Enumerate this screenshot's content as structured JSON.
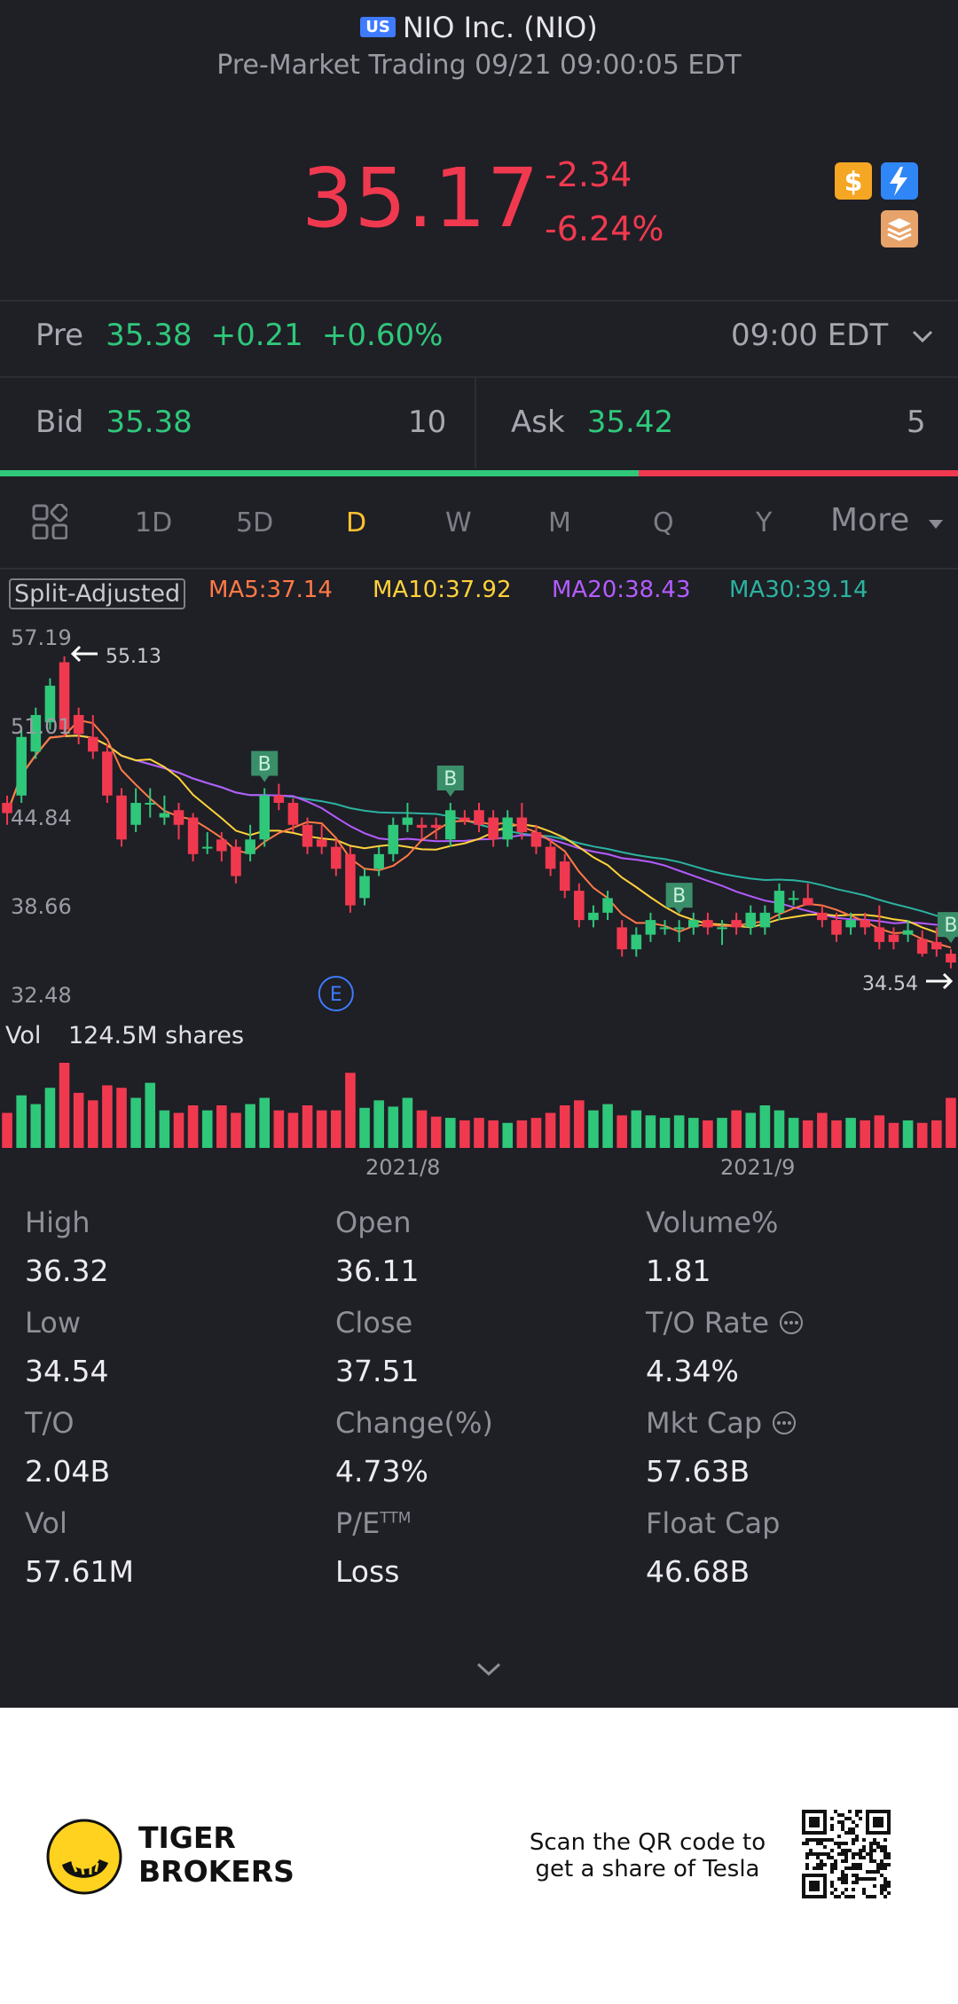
{
  "header": {
    "badge": "US",
    "title": "NIO Inc. (NIO)",
    "subtitle": "Pre-Market Trading 09/21 09:00:05 EDT"
  },
  "quote": {
    "price": "35.17",
    "change": "-2.34",
    "change_pct": "-6.24%",
    "icons": [
      "dollar-icon",
      "lightning-icon",
      "stack-icon"
    ]
  },
  "pre": {
    "label": "Pre",
    "price": "35.38",
    "change": "+0.21",
    "change_pct": "+0.60%",
    "time": "09:00 EDT"
  },
  "bidask": {
    "bid_label": "Bid",
    "bid": "35.38",
    "bid_size": "10",
    "ask_label": "Ask",
    "ask": "35.42",
    "ask_size": "5",
    "bid_ratio": 0.667
  },
  "tabs": [
    "1D",
    "5D",
    "D",
    "W",
    "M",
    "Q",
    "Y"
  ],
  "active_tab": "D",
  "more_label": "More",
  "chart": {
    "split_label": "Split-Adjusted",
    "ma5": "MA5:37.14",
    "ma10": "MA10:37.92",
    "ma20": "MA20:38.43",
    "ma30": "MA30:39.14",
    "y_labels": [
      "57.19",
      "51.01",
      "44.84",
      "38.66",
      "32.48"
    ],
    "high_marker": "55.13",
    "low_marker": "34.54",
    "event_badge": "E",
    "trade_badge": "B",
    "vol_label": "Vol",
    "vol_value": "124.5M shares",
    "x_labels": [
      "2021/8",
      "2021/9"
    ],
    "colors": {
      "up": "#2fc77a",
      "down": "#f0394f",
      "ma5": "#ff7a45",
      "ma10": "#ffd23a",
      "ma20": "#b45cff",
      "ma30": "#2bb3a0"
    }
  },
  "chart_data": {
    "type": "candlestick",
    "ylim": [
      32.48,
      57.19
    ],
    "candles": [
      {
        "o": 45.5,
        "c": 44.8,
        "h": 46.0,
        "l": 44.0,
        "v": 28
      },
      {
        "o": 46.0,
        "c": 50.0,
        "h": 50.5,
        "l": 45.5,
        "v": 42
      },
      {
        "o": 49.0,
        "c": 51.5,
        "h": 52.0,
        "l": 48.5,
        "v": 35
      },
      {
        "o": 51.0,
        "c": 53.5,
        "h": 54.0,
        "l": 50.5,
        "v": 48
      },
      {
        "o": 55.1,
        "c": 50.5,
        "h": 55.5,
        "l": 50.0,
        "v": 68
      },
      {
        "o": 51.5,
        "c": 50.2,
        "h": 52.0,
        "l": 49.5,
        "v": 44
      },
      {
        "o": 50.0,
        "c": 49.0,
        "h": 51.5,
        "l": 48.5,
        "v": 38
      },
      {
        "o": 49.0,
        "c": 46.0,
        "h": 49.5,
        "l": 45.5,
        "v": 50
      },
      {
        "o": 46.0,
        "c": 43.0,
        "h": 46.5,
        "l": 42.5,
        "v": 48
      },
      {
        "o": 44.0,
        "c": 45.5,
        "h": 46.5,
        "l": 43.5,
        "v": 40
      },
      {
        "o": 45.5,
        "c": 45.5,
        "h": 46.5,
        "l": 44.5,
        "v": 52
      },
      {
        "o": 44.5,
        "c": 44.8,
        "h": 46.0,
        "l": 44.0,
        "v": 30
      },
      {
        "o": 45.0,
        "c": 44.0,
        "h": 45.5,
        "l": 43.0,
        "v": 28
      },
      {
        "o": 44.5,
        "c": 42.0,
        "h": 44.8,
        "l": 41.5,
        "v": 34
      },
      {
        "o": 42.5,
        "c": 42.5,
        "h": 43.5,
        "l": 42.0,
        "v": 30
      },
      {
        "o": 43.0,
        "c": 42.2,
        "h": 43.5,
        "l": 41.5,
        "v": 34
      },
      {
        "o": 42.5,
        "c": 40.5,
        "h": 43.0,
        "l": 40.0,
        "v": 28
      },
      {
        "o": 42.0,
        "c": 43.0,
        "h": 44.0,
        "l": 41.5,
        "v": 35
      },
      {
        "o": 43.0,
        "c": 46.0,
        "h": 46.5,
        "l": 42.5,
        "v": 40
      },
      {
        "o": 46.0,
        "c": 45.5,
        "h": 46.8,
        "l": 45.0,
        "v": 30
      },
      {
        "o": 45.5,
        "c": 44.0,
        "h": 45.8,
        "l": 43.5,
        "v": 28
      },
      {
        "o": 44.0,
        "c": 42.5,
        "h": 44.5,
        "l": 42.0,
        "v": 34
      },
      {
        "o": 43.0,
        "c": 42.5,
        "h": 44.0,
        "l": 42.0,
        "v": 30
      },
      {
        "o": 42.5,
        "c": 41.0,
        "h": 43.0,
        "l": 40.5,
        "v": 30
      },
      {
        "o": 42.0,
        "c": 38.5,
        "h": 42.5,
        "l": 38.0,
        "v": 60
      },
      {
        "o": 39.0,
        "c": 40.5,
        "h": 41.0,
        "l": 38.5,
        "v": 32
      },
      {
        "o": 41.0,
        "c": 42.0,
        "h": 42.5,
        "l": 40.5,
        "v": 38
      },
      {
        "o": 42.0,
        "c": 44.0,
        "h": 44.5,
        "l": 41.5,
        "v": 33
      },
      {
        "o": 44.0,
        "c": 44.5,
        "h": 45.5,
        "l": 43.5,
        "v": 40
      },
      {
        "o": 44.0,
        "c": 43.8,
        "h": 44.5,
        "l": 43.0,
        "v": 30
      },
      {
        "o": 44.0,
        "c": 43.8,
        "h": 44.5,
        "l": 43.0,
        "v": 25
      },
      {
        "o": 43.0,
        "c": 45.0,
        "h": 45.5,
        "l": 42.5,
        "v": 24
      },
      {
        "o": 44.5,
        "c": 44.3,
        "h": 45.0,
        "l": 44.0,
        "v": 22
      },
      {
        "o": 45.0,
        "c": 44.0,
        "h": 45.5,
        "l": 43.5,
        "v": 24
      },
      {
        "o": 44.5,
        "c": 43.0,
        "h": 45.0,
        "l": 42.5,
        "v": 22
      },
      {
        "o": 43.0,
        "c": 44.5,
        "h": 45.0,
        "l": 42.5,
        "v": 20
      },
      {
        "o": 44.5,
        "c": 43.5,
        "h": 45.5,
        "l": 43.0,
        "v": 22
      },
      {
        "o": 43.5,
        "c": 42.5,
        "h": 44.0,
        "l": 42.0,
        "v": 24
      },
      {
        "o": 42.5,
        "c": 41.0,
        "h": 43.0,
        "l": 40.5,
        "v": 28
      },
      {
        "o": 41.5,
        "c": 39.5,
        "h": 42.0,
        "l": 39.0,
        "v": 34
      },
      {
        "o": 39.5,
        "c": 37.5,
        "h": 40.0,
        "l": 37.0,
        "v": 38
      },
      {
        "o": 37.5,
        "c": 38.0,
        "h": 38.5,
        "l": 37.0,
        "v": 30
      },
      {
        "o": 38.0,
        "c": 39.0,
        "h": 39.5,
        "l": 37.5,
        "v": 35
      },
      {
        "o": 37.0,
        "c": 35.5,
        "h": 37.5,
        "l": 35.0,
        "v": 26
      },
      {
        "o": 35.5,
        "c": 36.5,
        "h": 37.0,
        "l": 35.0,
        "v": 30
      },
      {
        "o": 36.5,
        "c": 37.5,
        "h": 38.0,
        "l": 36.0,
        "v": 26
      },
      {
        "o": 37.0,
        "c": 37.0,
        "h": 37.5,
        "l": 36.5,
        "v": 24
      },
      {
        "o": 37.0,
        "c": 37.0,
        "h": 37.5,
        "l": 36.0,
        "v": 26
      },
      {
        "o": 37.0,
        "c": 37.5,
        "h": 38.0,
        "l": 36.5,
        "v": 24
      },
      {
        "o": 37.5,
        "c": 37.0,
        "h": 38.0,
        "l": 36.5,
        "v": 22
      },
      {
        "o": 37.0,
        "c": 37.0,
        "h": 37.5,
        "l": 35.8,
        "v": 24
      },
      {
        "o": 37.5,
        "c": 37.0,
        "h": 38.0,
        "l": 36.5,
        "v": 30
      },
      {
        "o": 37.0,
        "c": 38.0,
        "h": 38.5,
        "l": 36.5,
        "v": 28
      },
      {
        "o": 37.0,
        "c": 38.0,
        "h": 38.5,
        "l": 36.5,
        "v": 34
      },
      {
        "o": 38.0,
        "c": 39.5,
        "h": 40.0,
        "l": 37.5,
        "v": 30
      },
      {
        "o": 39.0,
        "c": 39.0,
        "h": 39.5,
        "l": 38.5,
        "v": 24
      },
      {
        "o": 39.0,
        "c": 38.5,
        "h": 40.0,
        "l": 38.5,
        "v": 22
      },
      {
        "o": 38.0,
        "c": 37.5,
        "h": 38.5,
        "l": 37.0,
        "v": 28
      },
      {
        "o": 37.5,
        "c": 36.5,
        "h": 38.0,
        "l": 36.0,
        "v": 22
      },
      {
        "o": 37.0,
        "c": 37.5,
        "h": 38.0,
        "l": 36.5,
        "v": 24
      },
      {
        "o": 37.5,
        "c": 37.0,
        "h": 38.0,
        "l": 36.5,
        "v": 22
      },
      {
        "o": 37.0,
        "c": 36.0,
        "h": 38.5,
        "l": 35.5,
        "v": 26
      },
      {
        "o": 36.5,
        "c": 36.0,
        "h": 37.0,
        "l": 35.5,
        "v": 20
      },
      {
        "o": 36.5,
        "c": 36.8,
        "h": 37.5,
        "l": 36.0,
        "v": 22
      },
      {
        "o": 36.2,
        "c": 35.2,
        "h": 36.8,
        "l": 35.0,
        "v": 20
      },
      {
        "o": 36.0,
        "c": 35.5,
        "h": 37.0,
        "l": 35.0,
        "v": 22
      },
      {
        "o": 35.2,
        "c": 34.6,
        "h": 35.5,
        "l": 34.2,
        "v": 40
      }
    ],
    "b_marker_indices": [
      18,
      31,
      47,
      66
    ],
    "event_index": 23
  },
  "stats": [
    {
      "label": "High",
      "value": "36.32"
    },
    {
      "label": "Open",
      "value": "36.11"
    },
    {
      "label": "Volume%",
      "value": "1.81"
    },
    {
      "label": "Low",
      "value": "34.54"
    },
    {
      "label": "Close",
      "value": "37.51"
    },
    {
      "label": "T/O Rate",
      "value": "4.34%"
    },
    {
      "label": "T/O",
      "value": "2.04B"
    },
    {
      "label": "Change(%)",
      "value": "4.73%"
    },
    {
      "label": "Mkt Cap",
      "value": "57.63B"
    },
    {
      "label": "Vol",
      "value": "57.61M"
    },
    {
      "label": "P/E",
      "value": "Loss"
    },
    {
      "label": "Float Cap",
      "value": "46.68B"
    }
  ],
  "pe_sup": "TTM",
  "footer": {
    "brand_line1": "TIGER",
    "brand_line2": "BROKERS",
    "promo_line1": "Scan the QR code to",
    "promo_line2": "get a share of Tesla"
  }
}
